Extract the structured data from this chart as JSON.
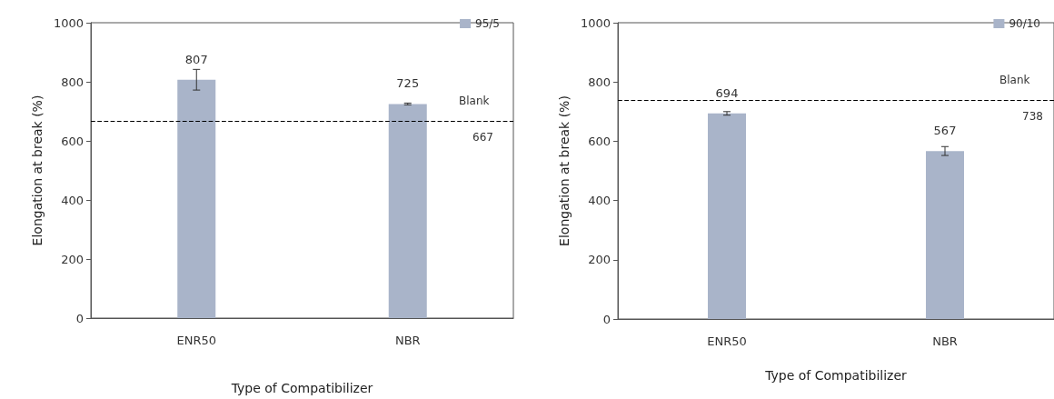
{
  "chart_data": [
    {
      "type": "bar",
      "xlabel": "Type of Compatibilizer",
      "ylabel": "Elongation at break (%)",
      "categories": [
        "ENR50",
        "NBR"
      ],
      "series": [
        {
          "name": "95/5",
          "color": "#a9b4c9",
          "values": [
            807,
            725
          ],
          "errors": [
            35,
            3
          ]
        }
      ],
      "ylim": [
        0,
        1000
      ],
      "yticks": [
        0,
        200,
        400,
        600,
        800,
        1000
      ],
      "data_labels": true,
      "legend": "top right",
      "ref_lines": [
        {
          "axis": "y",
          "value": 667,
          "label": "Blank",
          "line_style": "dashed",
          "color": "#000000"
        }
      ],
      "annotations": [
        "667"
      ]
    },
    {
      "type": "bar",
      "xlabel": "Type of Compatibilizer",
      "ylabel": "Elongation at break (%)",
      "categories": [
        "ENR50",
        "NBR"
      ],
      "series": [
        {
          "name": "90/10",
          "color": "#a9b4c9",
          "values": [
            694,
            567
          ],
          "errors": [
            6,
            15
          ]
        }
      ],
      "ylim": [
        0,
        1000
      ],
      "yticks": [
        0,
        200,
        400,
        600,
        800,
        1000
      ],
      "data_labels": true,
      "legend": "top right",
      "ref_lines": [
        {
          "axis": "y",
          "value": 738,
          "label": "Blank",
          "line_style": "dashed",
          "color": "#000000"
        }
      ],
      "annotations": [
        "738"
      ]
    }
  ]
}
